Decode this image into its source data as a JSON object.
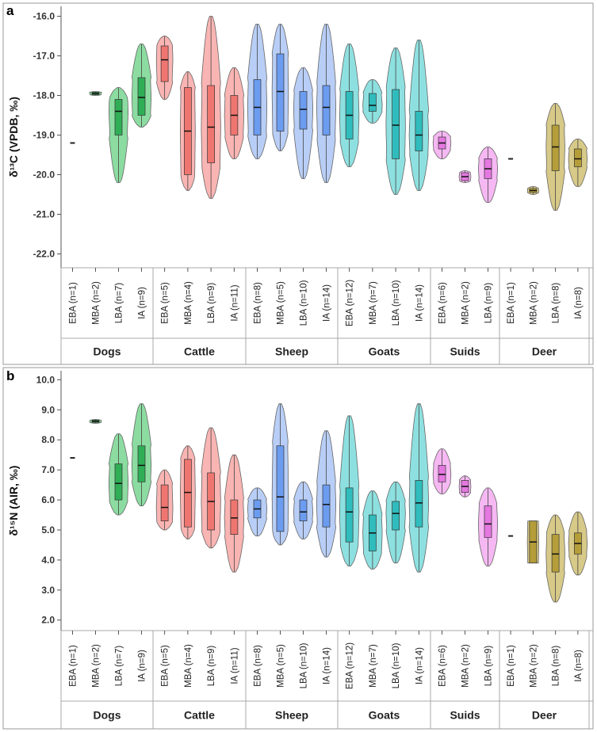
{
  "colors": {
    "Dogs": "#6fd38a",
    "Cattle": "#f7a3a0",
    "Sheep": "#a6c2f4",
    "Goats": "#72d8d8",
    "Suids": "#f2a6ef",
    "Deer": "#cdbb6a",
    "Dogs_box": "#2fae56",
    "Cattle_box": "#ef7670",
    "Sheep_box": "#6b9cf0",
    "Goats_box": "#30bcbc",
    "Suids_box": "#e478e0",
    "Deer_box": "#b59e3a"
  },
  "chart_data": [
    {
      "panel": "a",
      "type": "violin",
      "ylabel": "δ¹³C (VPDB, ‰)",
      "ylim": [
        -22.35,
        -15.75
      ],
      "yticks": [
        "-16.0",
        "-17.0",
        "-18.0",
        "-19.0",
        "-20.0",
        "-21.0",
        "-22.0"
      ],
      "groups": [
        "Dogs",
        "Cattle",
        "Sheep",
        "Goats",
        "Suids",
        "Deer"
      ],
      "categories": [
        {
          "label": "EBA (n=1)",
          "group": "Dogs",
          "n": 1,
          "min": -19.2,
          "max": -19.2,
          "q1": -19.2,
          "median": -19.2,
          "q3": -19.2
        },
        {
          "label": "MBA (n=2)",
          "group": "Dogs",
          "n": 2,
          "min": -18.0,
          "max": -17.9,
          "q1": -17.98,
          "median": -17.95,
          "q3": -17.92
        },
        {
          "label": "LBA (n=7)",
          "group": "Dogs",
          "n": 7,
          "min": -20.2,
          "max": -17.8,
          "q1": -19.0,
          "median": -18.4,
          "q3": -18.1
        },
        {
          "label": "IA (n=9)",
          "group": "Dogs",
          "n": 9,
          "min": -18.8,
          "max": -16.7,
          "q1": -18.5,
          "median": -18.05,
          "q3": -17.55
        },
        {
          "label": "EBA (n=5)",
          "group": "Cattle",
          "n": 5,
          "min": -18.1,
          "max": -16.5,
          "q1": -17.65,
          "median": -17.1,
          "q3": -16.75
        },
        {
          "label": "MBA (n=4)",
          "group": "Cattle",
          "n": 4,
          "min": -20.4,
          "max": -17.4,
          "q1": -20.0,
          "median": -18.9,
          "q3": -17.8
        },
        {
          "label": "LBA (n=9)",
          "group": "Cattle",
          "n": 9,
          "min": -20.6,
          "max": -16.0,
          "q1": -19.7,
          "median": -18.8,
          "q3": -17.75
        },
        {
          "label": "IA (n=11)",
          "group": "Cattle",
          "n": 11,
          "min": -19.6,
          "max": -17.3,
          "q1": -19.0,
          "median": -18.5,
          "q3": -18.0
        },
        {
          "label": "EBA (n=8)",
          "group": "Sheep",
          "n": 8,
          "min": -19.6,
          "max": -16.2,
          "q1": -19.0,
          "median": -18.3,
          "q3": -17.6
        },
        {
          "label": "MBA (n=5)",
          "group": "Sheep",
          "n": 5,
          "min": -19.4,
          "max": -16.2,
          "q1": -18.9,
          "median": -17.9,
          "q3": -16.95
        },
        {
          "label": "LBA (n=10)",
          "group": "Sheep",
          "n": 10,
          "min": -20.1,
          "max": -17.3,
          "q1": -18.85,
          "median": -18.35,
          "q3": -17.9
        },
        {
          "label": "IA (n=14)",
          "group": "Sheep",
          "n": 14,
          "min": -20.2,
          "max": -16.2,
          "q1": -19.0,
          "median": -18.3,
          "q3": -17.75
        },
        {
          "label": "EBA (n=12)",
          "group": "Goats",
          "n": 12,
          "min": -19.8,
          "max": -16.7,
          "q1": -19.1,
          "median": -18.5,
          "q3": -17.9
        },
        {
          "label": "MBA (n=7)",
          "group": "Goats",
          "n": 7,
          "min": -18.7,
          "max": -17.6,
          "q1": -18.4,
          "median": -18.25,
          "q3": -17.95
        },
        {
          "label": "LBA (n=10)",
          "group": "Goats",
          "n": 10,
          "min": -20.5,
          "max": -16.8,
          "q1": -19.6,
          "median": -18.75,
          "q3": -17.85
        },
        {
          "label": "IA (n=14)",
          "group": "Goats",
          "n": 14,
          "min": -20.4,
          "max": -16.6,
          "q1": -19.4,
          "median": -19.0,
          "q3": -18.4
        },
        {
          "label": "EBA (n=6)",
          "group": "Suids",
          "n": 6,
          "min": -19.6,
          "max": -18.9,
          "q1": -19.35,
          "median": -19.2,
          "q3": -19.05
        },
        {
          "label": "MBA (n=2)",
          "group": "Suids",
          "n": 2,
          "min": -20.2,
          "max": -19.9,
          "q1": -20.15,
          "median": -20.05,
          "q3": -19.95
        },
        {
          "label": "LBA (n=9)",
          "group": "Suids",
          "n": 9,
          "min": -20.7,
          "max": -19.3,
          "q1": -20.1,
          "median": -19.85,
          "q3": -19.6
        },
        {
          "label": "EBA (n=1)",
          "group": "Deer",
          "n": 1,
          "min": -19.6,
          "max": -19.6,
          "q1": -19.6,
          "median": -19.6,
          "q3": -19.6
        },
        {
          "label": "MBA (n=2)",
          "group": "Deer",
          "n": 2,
          "min": -20.5,
          "max": -20.3,
          "q1": -20.45,
          "median": -20.4,
          "q3": -20.35
        },
        {
          "label": "LBA (n=8)",
          "group": "Deer",
          "n": 8,
          "min": -20.9,
          "max": -18.2,
          "q1": -19.9,
          "median": -19.3,
          "q3": -18.75
        },
        {
          "label": "IA (n=8)",
          "group": "Deer",
          "n": 8,
          "min": -20.3,
          "max": -19.1,
          "q1": -19.8,
          "median": -19.6,
          "q3": -19.35
        }
      ]
    },
    {
      "panel": "b",
      "type": "violin",
      "ylabel": "δ¹⁵N (AIR, ‰)",
      "ylim": [
        1.65,
        10.3
      ],
      "yticks": [
        "10.0",
        "9.0",
        "8.0",
        "7.0",
        "6.0",
        "5.0",
        "4.0",
        "3.0",
        "2.0"
      ],
      "groups": [
        "Dogs",
        "Cattle",
        "Sheep",
        "Goats",
        "Suids",
        "Deer"
      ],
      "categories": [
        {
          "label": "EBA (n=1)",
          "group": "Dogs",
          "n": 1,
          "min": 7.4,
          "max": 7.4,
          "q1": 7.4,
          "median": 7.4,
          "q3": 7.4
        },
        {
          "label": "MBA (n=2)",
          "group": "Dogs",
          "n": 2,
          "min": 8.55,
          "max": 8.68,
          "q1": 8.58,
          "median": 8.62,
          "q3": 8.65
        },
        {
          "label": "LBA (n=7)",
          "group": "Dogs",
          "n": 7,
          "min": 5.5,
          "max": 8.2,
          "q1": 6.0,
          "median": 6.55,
          "q3": 7.2
        },
        {
          "label": "IA (n=9)",
          "group": "Dogs",
          "n": 9,
          "min": 5.8,
          "max": 9.2,
          "q1": 6.6,
          "median": 7.15,
          "q3": 7.8
        },
        {
          "label": "EBA (n=5)",
          "group": "Cattle",
          "n": 5,
          "min": 5.0,
          "max": 7.0,
          "q1": 5.3,
          "median": 5.75,
          "q3": 6.5
        },
        {
          "label": "MBA (n=4)",
          "group": "Cattle",
          "n": 4,
          "min": 4.7,
          "max": 7.8,
          "q1": 5.1,
          "median": 6.25,
          "q3": 7.35
        },
        {
          "label": "LBA (n=9)",
          "group": "Cattle",
          "n": 9,
          "min": 4.4,
          "max": 8.4,
          "q1": 5.0,
          "median": 5.95,
          "q3": 6.9
        },
        {
          "label": "IA (n=11)",
          "group": "Cattle",
          "n": 11,
          "min": 3.6,
          "max": 7.5,
          "q1": 4.85,
          "median": 5.4,
          "q3": 6.0
        },
        {
          "label": "EBA (n=8)",
          "group": "Sheep",
          "n": 8,
          "min": 4.8,
          "max": 6.4,
          "q1": 5.4,
          "median": 5.7,
          "q3": 6.0
        },
        {
          "label": "MBA (n=5)",
          "group": "Sheep",
          "n": 5,
          "min": 4.5,
          "max": 9.2,
          "q1": 4.95,
          "median": 6.1,
          "q3": 7.8
        },
        {
          "label": "LBA (n=10)",
          "group": "Sheep",
          "n": 10,
          "min": 4.7,
          "max": 6.6,
          "q1": 5.3,
          "median": 5.6,
          "q3": 6.0
        },
        {
          "label": "IA (n=14)",
          "group": "Sheep",
          "n": 14,
          "min": 4.1,
          "max": 8.3,
          "q1": 5.1,
          "median": 5.85,
          "q3": 6.5
        },
        {
          "label": "EBA (n=12)",
          "group": "Goats",
          "n": 12,
          "min": 3.8,
          "max": 8.8,
          "q1": 4.6,
          "median": 5.6,
          "q3": 6.4
        },
        {
          "label": "MBA (n=7)",
          "group": "Goats",
          "n": 7,
          "min": 3.7,
          "max": 6.3,
          "q1": 4.3,
          "median": 4.9,
          "q3": 5.5
        },
        {
          "label": "LBA (n=10)",
          "group": "Goats",
          "n": 10,
          "min": 3.9,
          "max": 6.6,
          "q1": 5.0,
          "median": 5.55,
          "q3": 5.95
        },
        {
          "label": "IA (n=14)",
          "group": "Goats",
          "n": 14,
          "min": 3.6,
          "max": 9.2,
          "q1": 5.1,
          "median": 5.9,
          "q3": 6.65
        },
        {
          "label": "EBA (n=6)",
          "group": "Suids",
          "n": 6,
          "min": 6.2,
          "max": 7.7,
          "q1": 6.6,
          "median": 6.85,
          "q3": 7.15
        },
        {
          "label": "MBA (n=2)",
          "group": "Suids",
          "n": 2,
          "min": 6.1,
          "max": 6.8,
          "q1": 6.25,
          "median": 6.45,
          "q3": 6.65
        },
        {
          "label": "LBA (n=9)",
          "group": "Suids",
          "n": 9,
          "min": 3.8,
          "max": 6.4,
          "q1": 4.75,
          "median": 5.2,
          "q3": 5.8
        },
        {
          "label": "EBA (n=1)",
          "group": "Deer",
          "n": 1,
          "min": 4.8,
          "max": 4.8,
          "q1": 4.8,
          "median": 4.8,
          "q3": 4.8
        },
        {
          "label": "MBA (n=2)",
          "group": "Deer",
          "n": 2,
          "min": 3.9,
          "max": 5.3,
          "q1": 3.9,
          "median": 4.6,
          "q3": 5.3
        },
        {
          "label": "LBA (n=8)",
          "group": "Deer",
          "n": 8,
          "min": 2.6,
          "max": 5.5,
          "q1": 3.6,
          "median": 4.2,
          "q3": 4.85
        },
        {
          "label": "IA (n=8)",
          "group": "Deer",
          "n": 8,
          "min": 3.5,
          "max": 5.6,
          "q1": 4.2,
          "median": 4.55,
          "q3": 4.9
        }
      ]
    }
  ]
}
